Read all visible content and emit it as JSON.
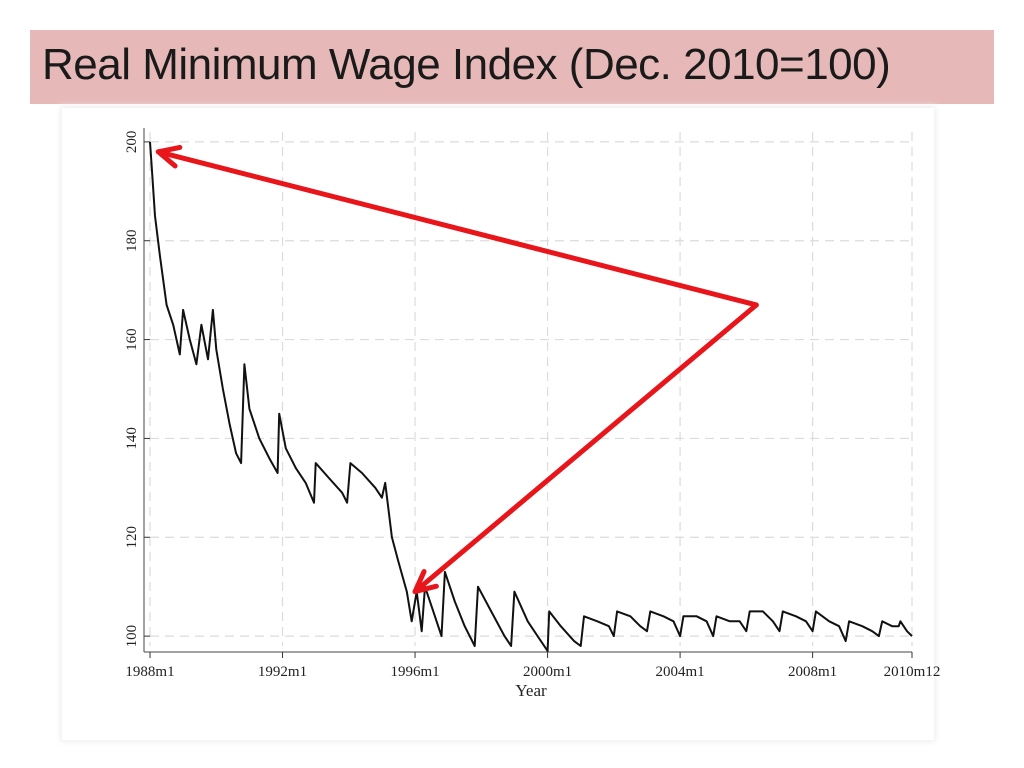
{
  "slide": {
    "title": "Real Minimum Wage Index (Dec. 2010=100)"
  },
  "colors": {
    "title_band": "#e6b9b8",
    "series_line": "#111111",
    "annotation_arrow": "#e8161b",
    "grid": "#dcdcdc"
  },
  "chart_data": {
    "type": "line",
    "title": "",
    "xlabel": "Year",
    "ylabel": "",
    "ylim": [
      98,
      202
    ],
    "xlim": [
      1988.0,
      2011.0
    ],
    "grid": true,
    "legend": "none",
    "y_ticks": [
      {
        "value": 100,
        "label": "100"
      },
      {
        "value": 120,
        "label": "120"
      },
      {
        "value": 140,
        "label": "140"
      },
      {
        "value": 160,
        "label": "160"
      },
      {
        "value": 180,
        "label": "180"
      },
      {
        "value": 200,
        "label": "200"
      }
    ],
    "x_ticks": [
      {
        "value": 1988.0,
        "label": "1988m1"
      },
      {
        "value": 1992.0,
        "label": "1992m1"
      },
      {
        "value": 1996.0,
        "label": "1996m1"
      },
      {
        "value": 2000.0,
        "label": "2000m1"
      },
      {
        "value": 2004.0,
        "label": "2004m1"
      },
      {
        "value": 2008.0,
        "label": "2008m1"
      },
      {
        "value": 2011.0,
        "label": "2010m12"
      }
    ],
    "series": [
      {
        "values": [
          [
            1988.0,
            200
          ],
          [
            1988.05,
            195
          ],
          [
            1988.15,
            185
          ],
          [
            1988.3,
            177
          ],
          [
            1988.5,
            167
          ],
          [
            1988.7,
            163
          ],
          [
            1988.9,
            157
          ],
          [
            1989.0,
            166
          ],
          [
            1989.2,
            160
          ],
          [
            1989.4,
            155
          ],
          [
            1989.55,
            163
          ],
          [
            1989.75,
            156
          ],
          [
            1989.9,
            166
          ],
          [
            1990.0,
            158
          ],
          [
            1990.2,
            150
          ],
          [
            1990.4,
            143
          ],
          [
            1990.6,
            137
          ],
          [
            1990.75,
            135
          ],
          [
            1990.85,
            155
          ],
          [
            1991.0,
            146
          ],
          [
            1991.3,
            140
          ],
          [
            1991.6,
            136
          ],
          [
            1991.85,
            133
          ],
          [
            1991.9,
            145
          ],
          [
            1992.1,
            138
          ],
          [
            1992.4,
            134
          ],
          [
            1992.7,
            131
          ],
          [
            1992.95,
            127
          ],
          [
            1993.0,
            135
          ],
          [
            1993.4,
            132
          ],
          [
            1993.8,
            129
          ],
          [
            1993.95,
            127
          ],
          [
            1994.05,
            135
          ],
          [
            1994.4,
            133
          ],
          [
            1994.8,
            130
          ],
          [
            1995.0,
            128
          ],
          [
            1995.1,
            131
          ],
          [
            1995.3,
            120
          ],
          [
            1995.5,
            115
          ],
          [
            1995.75,
            109
          ],
          [
            1995.9,
            103
          ],
          [
            1996.05,
            109
          ],
          [
            1996.2,
            101
          ],
          [
            1996.3,
            110
          ],
          [
            1996.55,
            105
          ],
          [
            1996.8,
            100
          ],
          [
            1996.9,
            113
          ],
          [
            1997.2,
            107
          ],
          [
            1997.5,
            102
          ],
          [
            1997.8,
            98
          ],
          [
            1997.9,
            110
          ],
          [
            1998.3,
            105
          ],
          [
            1998.7,
            100
          ],
          [
            1998.9,
            98
          ],
          [
            1999.0,
            109
          ],
          [
            1999.4,
            103
          ],
          [
            1999.8,
            99
          ],
          [
            2000.0,
            97
          ],
          [
            2000.05,
            105
          ],
          [
            2000.4,
            102
          ],
          [
            2000.8,
            99
          ],
          [
            2001.0,
            98
          ],
          [
            2001.1,
            104
          ],
          [
            2001.5,
            103
          ],
          [
            2001.85,
            102
          ],
          [
            2002.0,
            100
          ],
          [
            2002.1,
            105
          ],
          [
            2002.5,
            104
          ],
          [
            2002.8,
            102
          ],
          [
            2003.0,
            101
          ],
          [
            2003.1,
            105
          ],
          [
            2003.5,
            104
          ],
          [
            2003.8,
            103
          ],
          [
            2004.0,
            100
          ],
          [
            2004.1,
            104
          ],
          [
            2004.5,
            104
          ],
          [
            2004.8,
            103
          ],
          [
            2005.0,
            100
          ],
          [
            2005.1,
            104
          ],
          [
            2005.5,
            103
          ],
          [
            2005.8,
            103
          ],
          [
            2006.0,
            101
          ],
          [
            2006.1,
            105
          ],
          [
            2006.5,
            105
          ],
          [
            2006.8,
            103
          ],
          [
            2007.0,
            101
          ],
          [
            2007.1,
            105
          ],
          [
            2007.5,
            104
          ],
          [
            2007.8,
            103
          ],
          [
            2008.0,
            101
          ],
          [
            2008.1,
            105
          ],
          [
            2008.5,
            103
          ],
          [
            2008.8,
            102
          ],
          [
            2009.0,
            99
          ],
          [
            2009.1,
            103
          ],
          [
            2009.5,
            102
          ],
          [
            2009.8,
            101
          ],
          [
            2010.0,
            100
          ],
          [
            2010.1,
            103
          ],
          [
            2010.4,
            102
          ],
          [
            2010.6,
            102
          ],
          [
            2010.65,
            103
          ],
          [
            2010.85,
            101
          ],
          [
            2011.0,
            100
          ]
        ]
      }
    ],
    "annotations": [
      {
        "type": "arrow-pair",
        "vertex": [
          2006.3,
          167
        ],
        "targets": [
          [
            1988.25,
            198
          ],
          [
            1996.0,
            109
          ]
        ]
      }
    ]
  }
}
